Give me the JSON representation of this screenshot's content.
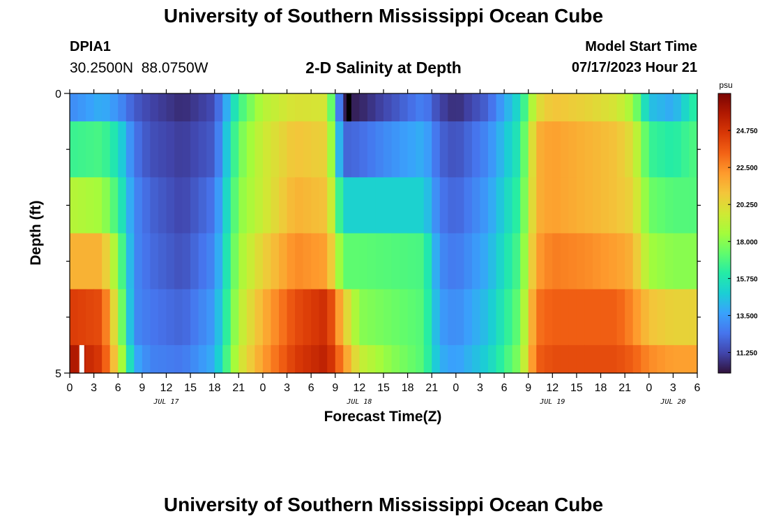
{
  "header": {
    "title": "University of Southern Mississippi Ocean Cube",
    "station_id": "DPIA1",
    "station_coords": "30.2500N  88.0750W",
    "plot_title": "2-D Salinity at Depth",
    "model_start_label": "Model Start Time",
    "model_start_value": "07/17/2023 Hour 21"
  },
  "footer": {
    "title": "University of Southern Mississippi Ocean Cube"
  },
  "chart_data": {
    "type": "heatmap",
    "title": "2-D Salinity at Depth",
    "xlabel": "Forecast Time(Z)",
    "ylabel": "Depth (ft)",
    "x_start_hour": 0,
    "x_end_hour": 78,
    "x_ticks": [
      {
        "hour": 0,
        "label": "0"
      },
      {
        "hour": 3,
        "label": "3"
      },
      {
        "hour": 6,
        "label": "6"
      },
      {
        "hour": 9,
        "label": "9"
      },
      {
        "hour": 12,
        "label": "12"
      },
      {
        "hour": 15,
        "label": "15"
      },
      {
        "hour": 18,
        "label": "18"
      },
      {
        "hour": 21,
        "label": "21"
      },
      {
        "hour": 24,
        "label": "0"
      },
      {
        "hour": 27,
        "label": "3"
      },
      {
        "hour": 30,
        "label": "6"
      },
      {
        "hour": 33,
        "label": "9"
      },
      {
        "hour": 36,
        "label": "12"
      },
      {
        "hour": 39,
        "label": "15"
      },
      {
        "hour": 42,
        "label": "18"
      },
      {
        "hour": 45,
        "label": "21"
      },
      {
        "hour": 48,
        "label": "0"
      },
      {
        "hour": 51,
        "label": "3"
      },
      {
        "hour": 54,
        "label": "6"
      },
      {
        "hour": 57,
        "label": "9"
      },
      {
        "hour": 60,
        "label": "12"
      },
      {
        "hour": 63,
        "label": "15"
      },
      {
        "hour": 66,
        "label": "18"
      },
      {
        "hour": 69,
        "label": "21"
      },
      {
        "hour": 72,
        "label": "0"
      },
      {
        "hour": 75,
        "label": "3"
      },
      {
        "hour": 78,
        "label": "6"
      }
    ],
    "date_labels": [
      {
        "hour": 12,
        "label": "JUL 17"
      },
      {
        "hour": 36,
        "label": "JUL 18"
      },
      {
        "hour": 60,
        "label": "JUL 19"
      },
      {
        "hour": 75,
        "label": "JUL 20"
      }
    ],
    "y_range": [
      0,
      5
    ],
    "y_tick_labels": [
      {
        "depth": 0,
        "label": "0"
      },
      {
        "depth": 5,
        "label": "5"
      }
    ],
    "y_minor_ticks": [
      1,
      2,
      3,
      4
    ],
    "depth_levels": [
      0.25,
      1.0,
      2.0,
      3.0,
      4.0,
      4.75
    ],
    "row_edges": [
      0,
      0.5,
      1.5,
      2.5,
      3.5,
      4.5,
      5
    ],
    "value_range": [
      10,
      27
    ],
    "profile_hours": [
      0,
      4,
      6,
      8,
      10,
      14,
      18,
      21,
      24,
      28,
      32,
      34,
      36,
      40,
      44,
      46,
      48,
      52,
      56,
      58,
      60,
      64,
      68,
      70,
      72,
      75,
      78
    ],
    "salinity": [
      [
        13.0,
        14.0,
        13.2,
        11.8,
        11.2,
        10.6,
        11.4,
        16.5,
        19.0,
        20.0,
        19.8,
        10.2,
        10.4,
        11.5,
        12.8,
        11.2,
        10.6,
        12.0,
        15.5,
        20.0,
        21.0,
        20.5,
        19.8,
        18.5,
        14.5,
        13.8,
        16.5
      ],
      [
        16.5,
        16.8,
        15.5,
        12.5,
        11.5,
        11.0,
        11.8,
        17.5,
        19.5,
        21.0,
        20.5,
        12.0,
        12.2,
        13.2,
        14.0,
        12.0,
        11.5,
        13.0,
        16.0,
        21.5,
        22.0,
        21.5,
        21.0,
        20.0,
        16.5,
        16.0,
        17.0
      ],
      [
        19.0,
        18.5,
        16.5,
        13.0,
        12.0,
        11.2,
        12.5,
        18.0,
        19.5,
        21.5,
        21.0,
        15.0,
        15.0,
        15.0,
        15.0,
        12.5,
        12.0,
        13.5,
        16.5,
        21.5,
        22.0,
        21.5,
        21.0,
        20.5,
        17.5,
        17.0,
        17.0
      ],
      [
        21.5,
        21.5,
        18.0,
        13.0,
        12.2,
        11.5,
        13.0,
        18.5,
        20.5,
        22.5,
        22.0,
        17.2,
        17.2,
        17.0,
        16.8,
        13.0,
        12.5,
        14.0,
        17.0,
        22.0,
        22.8,
        22.5,
        22.0,
        21.5,
        18.5,
        18.0,
        18.0
      ],
      [
        24.5,
        24.0,
        19.0,
        13.0,
        12.5,
        12.0,
        13.5,
        19.0,
        21.5,
        24.0,
        25.0,
        21.0,
        18.0,
        17.5,
        17.0,
        13.5,
        13.0,
        14.5,
        17.5,
        23.0,
        23.5,
        23.5,
        23.5,
        22.5,
        21.0,
        20.5,
        20.5
      ],
      [
        26.0,
        24.5,
        20.0,
        14.0,
        12.8,
        12.5,
        14.0,
        19.5,
        22.0,
        24.5,
        25.5,
        22.5,
        19.5,
        18.0,
        17.0,
        14.0,
        13.5,
        15.0,
        18.0,
        23.5,
        24.0,
        24.0,
        24.0,
        23.5,
        22.5,
        22.0,
        22.0
      ]
    ],
    "colorbar": {
      "unit": "psu",
      "ticks": [
        {
          "value": 24.75,
          "label": "24.750"
        },
        {
          "value": 22.5,
          "label": "22.500"
        },
        {
          "value": 20.25,
          "label": "20.250"
        },
        {
          "value": 18.0,
          "label": "18.000"
        },
        {
          "value": 15.75,
          "label": "15.750"
        },
        {
          "value": 13.5,
          "label": "13.500"
        },
        {
          "value": 11.25,
          "label": "11.250"
        }
      ],
      "range": [
        10,
        27
      ]
    },
    "missing_cells": [
      {
        "label": "white",
        "row": 5,
        "hour_start": 1.2,
        "hour_end": 1.8,
        "color": "#ffffff"
      },
      {
        "label": "black",
        "row": 0,
        "hour_start": 34.4,
        "hour_end": 35.0,
        "color": "#000000"
      }
    ],
    "colors": {
      "palette": [
        "#30123b",
        "#4145ab",
        "#4675ed",
        "#39a2fc",
        "#1bcfd4",
        "#24eca6",
        "#61fc6c",
        "#a4fc3b",
        "#d1e834",
        "#f3c63a",
        "#fe9b2d",
        "#f36315",
        "#d93806",
        "#b11901",
        "#7a0403"
      ]
    }
  }
}
